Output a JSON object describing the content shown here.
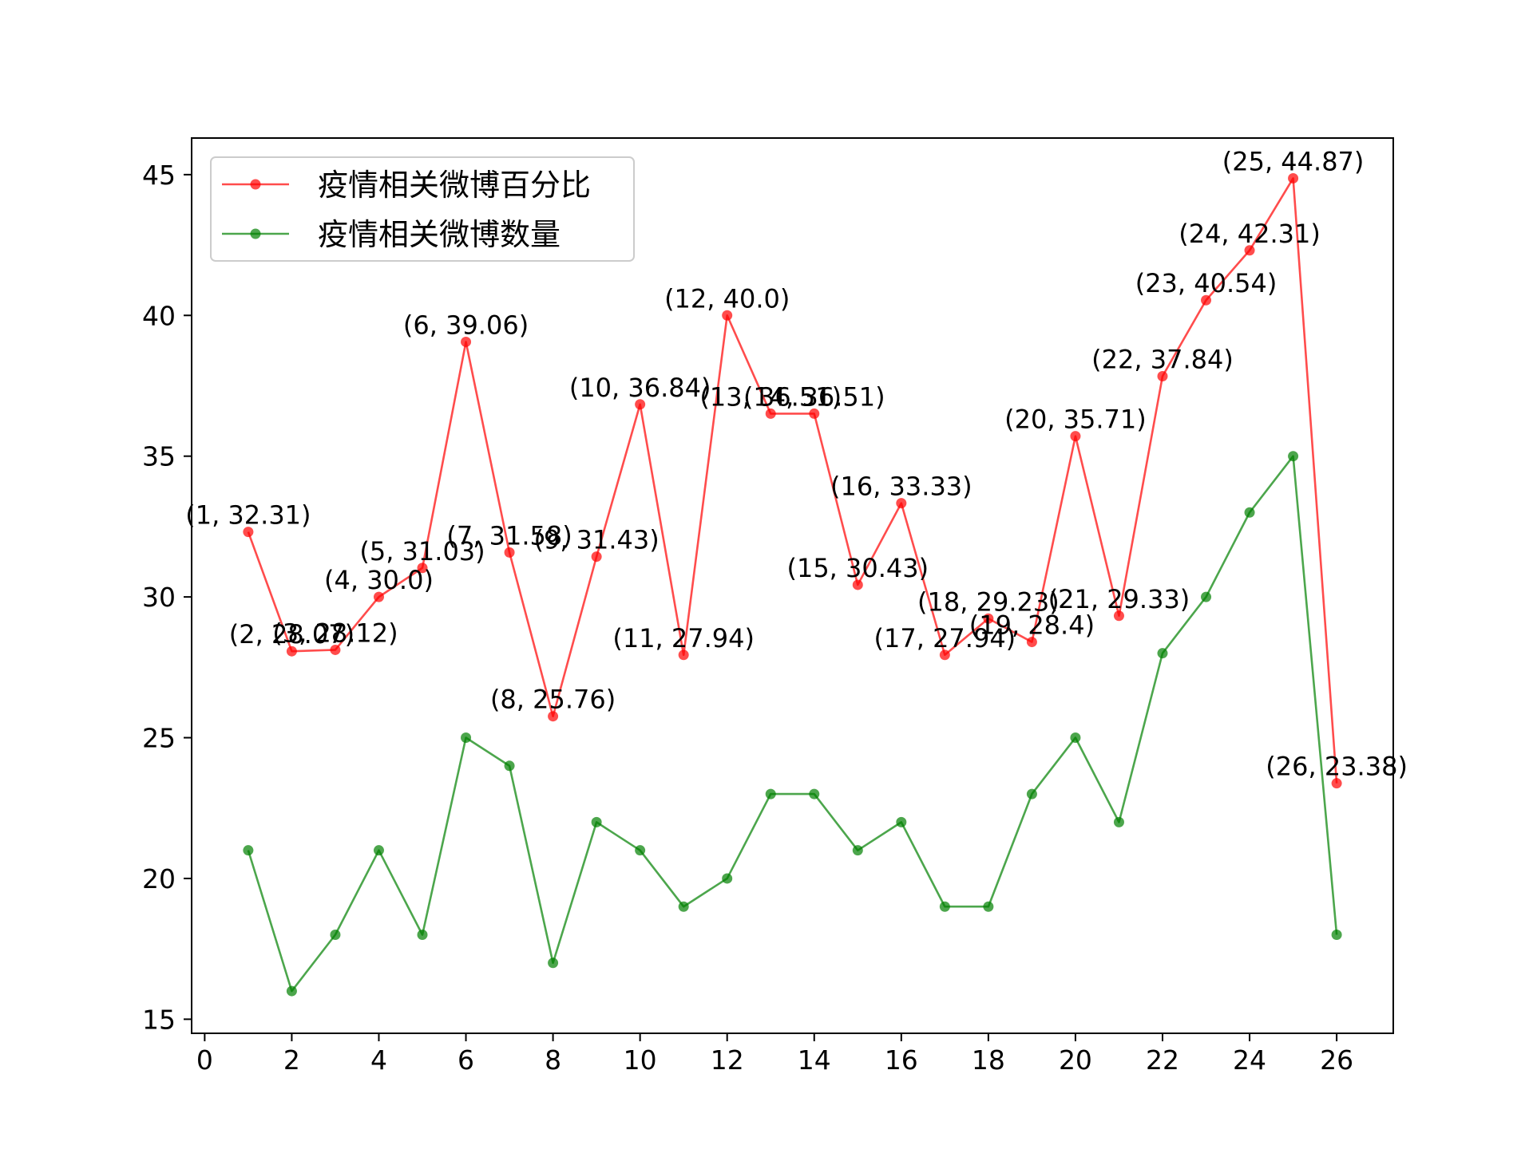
{
  "chart_data": {
    "type": "line",
    "title": "",
    "xlabel": "",
    "ylabel": "",
    "xlim": [
      -0.3,
      27.3
    ],
    "ylim": [
      14.5,
      46.3
    ],
    "xticks": [
      0,
      2,
      4,
      6,
      8,
      10,
      12,
      14,
      16,
      18,
      20,
      22,
      24,
      26
    ],
    "yticks": [
      15,
      20,
      25,
      30,
      35,
      40,
      45
    ],
    "grid": false,
    "legend_position": "top-left",
    "x": [
      1,
      2,
      3,
      4,
      5,
      6,
      7,
      8,
      9,
      10,
      11,
      12,
      13,
      14,
      15,
      16,
      17,
      18,
      19,
      20,
      21,
      22,
      23,
      24,
      25,
      26
    ],
    "series": [
      {
        "name": "疫情相关微博百分比",
        "color": "#ff0000",
        "values": [
          32.31,
          28.07,
          28.12,
          30.0,
          31.03,
          39.06,
          31.58,
          25.76,
          31.43,
          36.84,
          27.94,
          40.0,
          36.51,
          36.51,
          30.43,
          33.33,
          27.94,
          29.23,
          28.4,
          35.71,
          29.33,
          37.84,
          40.54,
          42.31,
          44.87,
          23.38
        ],
        "annotations": [
          "(1, 32.31)",
          "(2, 28.07)",
          "(3, 28.12)",
          "(4, 30.0)",
          "(5, 31.03)",
          "(6, 39.06)",
          "(7, 31.58)",
          "(8, 25.76)",
          "(9, 31.43)",
          "(10, 36.84)",
          "(11, 27.94)",
          "(12, 40.0)",
          "(13, 36.51)",
          "(14, 36.51)",
          "(15, 30.43)",
          "(16, 33.33)",
          "(17, 27.94)",
          "(18, 29.23)",
          "(19, 28.4)",
          "(20, 35.71)",
          "(21, 29.33)",
          "(22, 37.84)",
          "(23, 40.54)",
          "(24, 42.31)",
          "(25, 44.87)",
          "(26, 23.38)"
        ]
      },
      {
        "name": "疫情相关微博数量",
        "color": "#008000",
        "values": [
          21,
          16,
          18,
          21,
          18,
          25,
          24,
          17,
          22,
          21,
          19,
          20,
          23,
          23,
          21,
          22,
          19,
          19,
          23,
          25,
          22,
          28,
          30,
          33,
          35,
          18
        ]
      }
    ]
  }
}
